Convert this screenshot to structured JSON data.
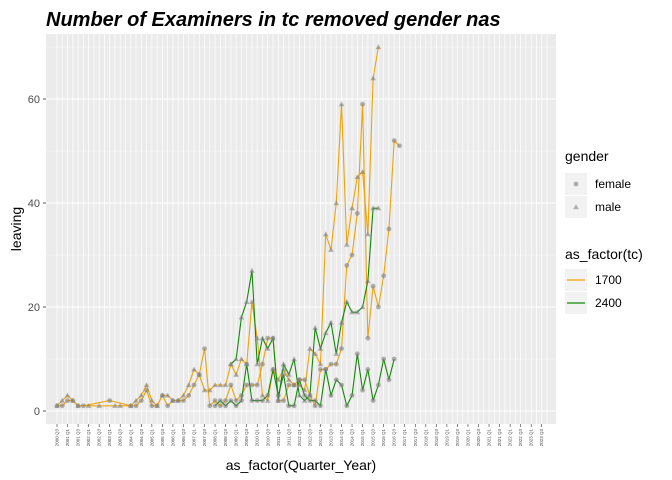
{
  "chart_data": {
    "type": "line",
    "title": "Number of Examiners in tc removed gender nas",
    "xlabel": "as_factor(Quarter_Year)",
    "ylabel": "leaving",
    "ylim": [
      -2.5,
      72.5
    ],
    "yticks": [
      0,
      20,
      40,
      60
    ],
    "grid": true,
    "categories": [
      "2000 Q3",
      "2000 Q4",
      "2001 Q1",
      "2001 Q2",
      "2001 Q3",
      "2001 Q4",
      "2002 Q1",
      "2002 Q2",
      "2002 Q3",
      "2002 Q4",
      "2003 Q1",
      "2003 Q2",
      "2003 Q3",
      "2003 Q4",
      "2004 Q1",
      "2004 Q2",
      "2004 Q3",
      "2004 Q4",
      "2005 Q1",
      "2005 Q2",
      "2005 Q3",
      "2005 Q4",
      "2006 Q1",
      "2006 Q2",
      "2006 Q3",
      "2006 Q4",
      "2007 Q1",
      "2007 Q2",
      "2007 Q3",
      "2007 Q4",
      "2008 Q1",
      "2008 Q2",
      "2008 Q3",
      "2008 Q4",
      "2009 Q1",
      "2009 Q2",
      "2009 Q3",
      "2009 Q4",
      "2010 Q1",
      "2010 Q2",
      "2010 Q3",
      "2010 Q4",
      "2011 Q1",
      "2011 Q2",
      "2011 Q3",
      "2011 Q4",
      "2012 Q1",
      "2012 Q2",
      "2012 Q3",
      "2012 Q4",
      "2013 Q1",
      "2013 Q2",
      "2013 Q3",
      "2013 Q4",
      "2014 Q1",
      "2014 Q2",
      "2014 Q3",
      "2014 Q4",
      "2015 Q1",
      "2015 Q2",
      "2015 Q3",
      "2015 Q4",
      "2016 Q1",
      "2016 Q2",
      "2016 Q3",
      "2016 Q4",
      "2017 Q1",
      "2017 Q2",
      "2017 Q3",
      "2017 Q4",
      "2018 Q1",
      "2018 Q2",
      "2018 Q3",
      "2018 Q4",
      "2019 Q1",
      "2019 Q2",
      "2019 Q3",
      "2019 Q4",
      "2020 Q1",
      "2020 Q2",
      "2020 Q3",
      "2020 Q4",
      "2021 Q1",
      "2021 Q2",
      "2021 Q3",
      "2021 Q4",
      "2022 Q1",
      "2022 Q2",
      "2022 Q3",
      "2022 Q4",
      "2023 Q1",
      "2023 Q2",
      "2023 Q3",
      "2023 Q4"
    ],
    "tick_labels": [
      "2000 Q3",
      "2001 Q1",
      "2001 Q3",
      "2002 Q1",
      "2002 Q3",
      "2003 Q1",
      "2003 Q3",
      "2004 Q1",
      "2004 Q3",
      "2005 Q1",
      "2005 Q3",
      "2006 Q1",
      "2006 Q3",
      "2007 Q1",
      "2007 Q3",
      "2008 Q1",
      "2008 Q3",
      "2009 Q1",
      "2009 Q3",
      "2010 Q1",
      "2010 Q3",
      "2011 Q1",
      "2011 Q3",
      "2012 Q1",
      "2012 Q3",
      "2013 Q1",
      "2013 Q3",
      "2014 Q1",
      "2014 Q3",
      "2015 Q1",
      "2015 Q3",
      "2016 Q1",
      "2016 Q3",
      "2017 Q1",
      "2017 Q3",
      "2018 Q1",
      "2018 Q3",
      "2019 Q1",
      "2019 Q3",
      "2020 Q1",
      "2020 Q3",
      "2021 Q1",
      "2021 Q3",
      "2022 Q1",
      "2022 Q3",
      "2023 Q1",
      "2023 Q3"
    ],
    "legend": [
      {
        "title": "gender",
        "entries": [
          {
            "label": "female",
            "shape": "circle"
          },
          {
            "label": "male",
            "shape": "triangle"
          }
        ]
      },
      {
        "title": "as_factor(tc)",
        "entries": [
          {
            "label": "1700",
            "color": "#f0a30a"
          },
          {
            "label": "2400",
            "color": "#138808"
          }
        ]
      }
    ],
    "series": [
      {
        "tc": "1700",
        "gender": "female",
        "color": "#f0a30a",
        "shape": "circle",
        "points": [
          [
            "2000 Q3",
            1
          ],
          [
            "2000 Q4",
            1
          ],
          [
            "2001 Q1",
            2
          ],
          [
            "2001 Q2",
            2
          ],
          [
            "2001 Q3",
            1
          ],
          [
            "2001 Q4",
            1
          ],
          [
            "2003 Q1",
            2
          ],
          [
            "2004 Q1",
            1
          ],
          [
            "2004 Q2",
            1
          ],
          [
            "2004 Q3",
            2
          ],
          [
            "2004 Q4",
            4
          ],
          [
            "2005 Q1",
            1
          ],
          [
            "2005 Q2",
            1
          ],
          [
            "2005 Q3",
            3
          ],
          [
            "2005 Q4",
            1
          ],
          [
            "2006 Q1",
            2
          ],
          [
            "2006 Q2",
            2
          ],
          [
            "2006 Q3",
            2
          ],
          [
            "2006 Q4",
            3
          ],
          [
            "2007 Q1",
            5
          ],
          [
            "2007 Q2",
            7
          ],
          [
            "2007 Q3",
            12
          ],
          [
            "2007 Q4",
            1
          ],
          [
            "2008 Q1",
            2
          ],
          [
            "2008 Q2",
            1
          ],
          [
            "2008 Q3",
            2
          ],
          [
            "2008 Q4",
            5
          ],
          [
            "2009 Q1",
            2
          ],
          [
            "2009 Q2",
            3
          ],
          [
            "2009 Q3",
            5
          ],
          [
            "2009 Q4",
            5
          ],
          [
            "2010 Q1",
            5
          ],
          [
            "2010 Q2",
            9
          ],
          [
            "2010 Q3",
            14
          ],
          [
            "2010 Q4",
            14
          ],
          [
            "2011 Q1",
            2
          ],
          [
            "2011 Q2",
            2
          ],
          [
            "2011 Q3",
            5
          ],
          [
            "2011 Q4",
            5
          ],
          [
            "2012 Q1",
            6
          ],
          [
            "2012 Q2",
            6
          ],
          [
            "2012 Q3",
            3
          ],
          [
            "2012 Q4",
            1
          ],
          [
            "2013 Q1",
            8
          ],
          [
            "2013 Q2",
            8
          ],
          [
            "2013 Q3",
            9
          ],
          [
            "2013 Q4",
            9
          ],
          [
            "2014 Q1",
            12
          ],
          [
            "2014 Q2",
            28
          ],
          [
            "2014 Q3",
            30
          ],
          [
            "2014 Q4",
            38
          ],
          [
            "2015 Q1",
            59
          ],
          [
            "2015 Q2",
            14
          ],
          [
            "2015 Q3",
            24
          ],
          [
            "2015 Q4",
            20
          ],
          [
            "2016 Q1",
            26
          ],
          [
            "2016 Q2",
            35
          ],
          [
            "2016 Q3",
            52
          ],
          [
            "2016 Q4",
            51
          ]
        ]
      },
      {
        "tc": "1700",
        "gender": "male",
        "color": "#f0a30a",
        "shape": "triangle",
        "points": [
          [
            "2000 Q3",
            1
          ],
          [
            "2000 Q4",
            2
          ],
          [
            "2001 Q1",
            3
          ],
          [
            "2001 Q2",
            2
          ],
          [
            "2001 Q3",
            1
          ],
          [
            "2002 Q1",
            1
          ],
          [
            "2002 Q3",
            1
          ],
          [
            "2003 Q2",
            1
          ],
          [
            "2003 Q3",
            1
          ],
          [
            "2004 Q1",
            1
          ],
          [
            "2004 Q2",
            2
          ],
          [
            "2004 Q3",
            3
          ],
          [
            "2004 Q4",
            5
          ],
          [
            "2005 Q1",
            2
          ],
          [
            "2005 Q2",
            1
          ],
          [
            "2005 Q3",
            3
          ],
          [
            "2005 Q4",
            3
          ],
          [
            "2006 Q1",
            2
          ],
          [
            "2006 Q2",
            2
          ],
          [
            "2006 Q3",
            3
          ],
          [
            "2006 Q4",
            5
          ],
          [
            "2007 Q1",
            8
          ],
          [
            "2007 Q2",
            7
          ],
          [
            "2007 Q3",
            4
          ],
          [
            "2007 Q4",
            4
          ],
          [
            "2008 Q1",
            5
          ],
          [
            "2008 Q2",
            5
          ],
          [
            "2008 Q3",
            5
          ],
          [
            "2008 Q4",
            9
          ],
          [
            "2009 Q1",
            7
          ],
          [
            "2009 Q2",
            10
          ],
          [
            "2009 Q3",
            9
          ],
          [
            "2009 Q4",
            21
          ],
          [
            "2010 Q1",
            14
          ],
          [
            "2010 Q2",
            3
          ],
          [
            "2010 Q3",
            2
          ],
          [
            "2010 Q4",
            8
          ],
          [
            "2011 Q1",
            6
          ],
          [
            "2011 Q2",
            8
          ],
          [
            "2011 Q3",
            6
          ],
          [
            "2011 Q4",
            5
          ],
          [
            "2012 Q1",
            5
          ],
          [
            "2012 Q2",
            4
          ],
          [
            "2012 Q3",
            12
          ],
          [
            "2012 Q4",
            11
          ],
          [
            "2013 Q1",
            9
          ],
          [
            "2013 Q2",
            34
          ],
          [
            "2013 Q3",
            31
          ],
          [
            "2013 Q4",
            40
          ],
          [
            "2014 Q1",
            59
          ],
          [
            "2014 Q2",
            32
          ],
          [
            "2014 Q3",
            39
          ],
          [
            "2014 Q4",
            45
          ],
          [
            "2015 Q1",
            46
          ],
          [
            "2015 Q2",
            34
          ],
          [
            "2015 Q3",
            64
          ],
          [
            "2015 Q4",
            70
          ]
        ]
      },
      {
        "tc": "2400",
        "gender": "female",
        "color": "#138808",
        "shape": "circle",
        "points": [
          [
            "2008 Q1",
            1
          ],
          [
            "2008 Q2",
            2
          ],
          [
            "2008 Q3",
            1
          ],
          [
            "2008 Q4",
            2
          ],
          [
            "2009 Q1",
            1
          ],
          [
            "2009 Q2",
            2
          ],
          [
            "2009 Q3",
            9
          ],
          [
            "2009 Q4",
            2
          ],
          [
            "2010 Q1",
            2
          ],
          [
            "2010 Q2",
            2
          ],
          [
            "2010 Q3",
            3
          ],
          [
            "2010 Q4",
            8
          ],
          [
            "2011 Q1",
            3
          ],
          [
            "2011 Q2",
            7
          ],
          [
            "2011 Q3",
            1
          ],
          [
            "2011 Q4",
            1
          ],
          [
            "2012 Q1",
            6
          ],
          [
            "2012 Q2",
            3
          ],
          [
            "2012 Q3",
            2
          ],
          [
            "2012 Q4",
            2
          ],
          [
            "2013 Q1",
            1
          ],
          [
            "2013 Q2",
            8
          ],
          [
            "2013 Q3",
            3
          ],
          [
            "2013 Q4",
            6
          ],
          [
            "2014 Q1",
            5
          ],
          [
            "2014 Q2",
            1
          ],
          [
            "2014 Q3",
            3
          ],
          [
            "2014 Q4",
            11
          ],
          [
            "2015 Q1",
            4
          ],
          [
            "2015 Q2",
            8
          ],
          [
            "2015 Q3",
            2
          ],
          [
            "2015 Q4",
            5
          ],
          [
            "2016 Q1",
            10
          ],
          [
            "2016 Q2",
            6
          ],
          [
            "2016 Q3",
            10
          ]
        ]
      },
      {
        "tc": "2400",
        "gender": "male",
        "color": "#138808",
        "shape": "triangle",
        "points": [
          [
            "2008 Q4",
            9
          ],
          [
            "2009 Q1",
            10
          ],
          [
            "2009 Q2",
            18
          ],
          [
            "2009 Q3",
            21
          ],
          [
            "2009 Q4",
            27
          ],
          [
            "2010 Q1",
            9
          ],
          [
            "2010 Q2",
            14
          ],
          [
            "2010 Q3",
            12
          ],
          [
            "2010 Q4",
            14
          ],
          [
            "2011 Q1",
            2
          ],
          [
            "2011 Q2",
            9
          ],
          [
            "2011 Q3",
            7
          ],
          [
            "2011 Q4",
            10
          ],
          [
            "2012 Q1",
            3
          ],
          [
            "2012 Q2",
            2
          ],
          [
            "2012 Q3",
            3
          ],
          [
            "2012 Q4",
            16
          ],
          [
            "2013 Q1",
            12
          ],
          [
            "2013 Q2",
            15
          ],
          [
            "2013 Q3",
            17
          ],
          [
            "2013 Q4",
            11
          ],
          [
            "2014 Q1",
            17
          ],
          [
            "2014 Q2",
            21
          ],
          [
            "2014 Q3",
            19
          ],
          [
            "2014 Q4",
            19
          ],
          [
            "2015 Q1",
            20
          ],
          [
            "2015 Q2",
            25
          ],
          [
            "2015 Q3",
            39
          ],
          [
            "2015 Q4",
            39
          ]
        ]
      }
    ]
  }
}
